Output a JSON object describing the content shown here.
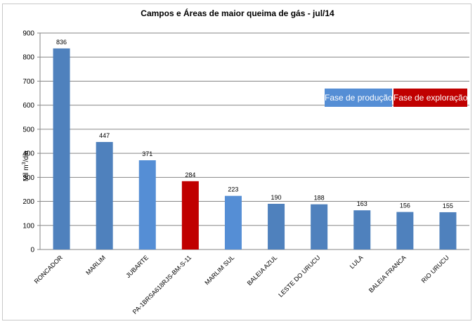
{
  "chart_data": {
    "type": "bar",
    "title": "Campos e Áreas de maior queima de gás - jul/14",
    "ylabel_prefix": "Mil m",
    "ylabel_sup": "3",
    "ylabel_suffix": "/dia",
    "xlabel": "",
    "ylim": [
      0,
      900
    ],
    "yticks": [
      0,
      100,
      200,
      300,
      400,
      500,
      600,
      700,
      800,
      900
    ],
    "grid": true,
    "categories": [
      "RONCADOR",
      "MARLIM",
      "JUBARTE",
      "PA-1BRSA618RJS-BM-S-11",
      "MARLIM SUL",
      "BALEIA AZUL",
      "LESTE DO URUCU",
      "LULA",
      "BALEIA FRANCA",
      "RIO URUCU"
    ],
    "values": [
      836,
      447,
      371,
      284,
      223,
      190,
      188,
      163,
      156,
      155
    ],
    "phase": [
      "producao",
      "producao",
      "producao",
      "exploracao",
      "producao",
      "producao",
      "producao",
      "producao",
      "producao",
      "producao"
    ],
    "bar_colors": [
      "#4f81bd",
      "#4f81bd",
      "#558ed5",
      "#c00000",
      "#558ed5",
      "#4f81bd",
      "#4f81bd",
      "#4f81bd",
      "#4f81bd",
      "#4f81bd"
    ],
    "legend": {
      "placement": "right",
      "entries": [
        {
          "label": "Fase de produção",
          "color": "#558ed5"
        },
        {
          "label": "Fase de exploração",
          "color": "#c00000"
        }
      ]
    }
  }
}
